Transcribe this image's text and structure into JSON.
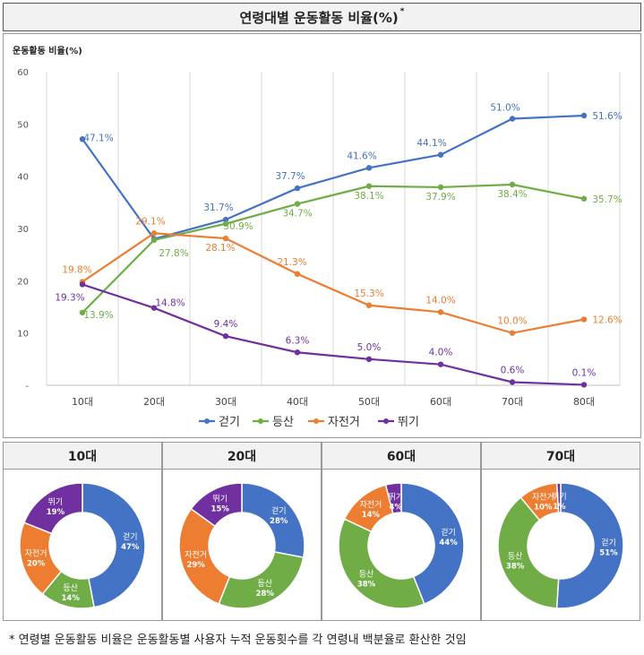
{
  "title": "연령대별 운동활동 비율(%)",
  "title_mark": "*",
  "footnote": "* 연령별 운동활동 비율은 운동활동별 사용자 누적 운동횟수를 각 연령내 백분율로 환산한 것임",
  "colors": {
    "walk": "#4472c4",
    "hike": "#70ad47",
    "bike": "#ed7d31",
    "run": "#7030a0",
    "grid": "#d9d9d9"
  },
  "chart_data": [
    {
      "type": "line",
      "ylabel": "운동활동 비율(%)",
      "ylim": [
        0,
        60
      ],
      "yticks": [
        0,
        10,
        20,
        30,
        40,
        50,
        60
      ],
      "y_tick_labels": [
        "-",
        "10",
        "20",
        "30",
        "40",
        "50",
        "60"
      ],
      "categories": [
        "10대",
        "20대",
        "30대",
        "40대",
        "50대",
        "60대",
        "70대",
        "80대"
      ],
      "grid": "vertical",
      "legend": "bottom",
      "series": [
        {
          "key": "walk",
          "name": "걷기",
          "values": [
            47.1,
            28.0,
            31.7,
            37.7,
            41.6,
            44.1,
            51.0,
            51.6
          ],
          "labels": [
            "47.1%",
            "",
            "31.7%",
            "37.7%",
            "41.6%",
            "44.1%",
            "51.0%",
            "51.6%"
          ]
        },
        {
          "key": "hike",
          "name": "등산",
          "values": [
            13.9,
            27.8,
            30.9,
            34.7,
            38.1,
            37.9,
            38.4,
            35.7
          ],
          "labels": [
            "13.9%",
            "27.8%",
            "30.9%",
            "34.7%",
            "38.1%",
            "37.9%",
            "38.4%",
            "35.7%"
          ]
        },
        {
          "key": "bike",
          "name": "자전거",
          "values": [
            19.8,
            29.1,
            28.1,
            21.3,
            15.3,
            14.0,
            10.0,
            12.6
          ],
          "labels": [
            "19.8%",
            "29.1%",
            "28.1%",
            "21.3%",
            "15.3%",
            "14.0%",
            "10.0%",
            "12.6%"
          ]
        },
        {
          "key": "run",
          "name": "뛰기",
          "values": [
            19.3,
            14.8,
            9.4,
            6.3,
            5.0,
            4.0,
            0.6,
            0.1
          ],
          "labels": [
            "19.3%",
            "14.8%",
            "9.4%",
            "6.3%",
            "5.0%",
            "4.0%",
            "0.6%",
            "0.1%"
          ]
        }
      ]
    },
    {
      "type": "pie",
      "title": "10대",
      "slices": [
        {
          "key": "walk",
          "name": "걷기",
          "value": 47,
          "label": "47%"
        },
        {
          "key": "hike",
          "name": "등산",
          "value": 14,
          "label": "14%"
        },
        {
          "key": "bike",
          "name": "자전거",
          "value": 20,
          "label": "20%"
        },
        {
          "key": "run",
          "name": "뛰기",
          "value": 19,
          "label": "19%"
        }
      ]
    },
    {
      "type": "pie",
      "title": "20대",
      "slices": [
        {
          "key": "walk",
          "name": "걷기",
          "value": 28,
          "label": "28%"
        },
        {
          "key": "hike",
          "name": "등산",
          "value": 28,
          "label": "28%"
        },
        {
          "key": "bike",
          "name": "자전거",
          "value": 29,
          "label": "29%"
        },
        {
          "key": "run",
          "name": "뛰기",
          "value": 15,
          "label": "15%"
        }
      ]
    },
    {
      "type": "pie",
      "title": "60대",
      "slices": [
        {
          "key": "walk",
          "name": "걷기",
          "value": 44,
          "label": "44%"
        },
        {
          "key": "hike",
          "name": "등산",
          "value": 38,
          "label": "38%"
        },
        {
          "key": "bike",
          "name": "자전거",
          "value": 14,
          "label": "14%"
        },
        {
          "key": "run",
          "name": "뛰기",
          "value": 4,
          "label": "4%"
        }
      ]
    },
    {
      "type": "pie",
      "title": "70대",
      "slices": [
        {
          "key": "walk",
          "name": "걷기",
          "value": 51,
          "label": "51%"
        },
        {
          "key": "hike",
          "name": "등산",
          "value": 38,
          "label": "38%"
        },
        {
          "key": "bike",
          "name": "자전거",
          "value": 10,
          "label": "10%"
        },
        {
          "key": "run",
          "name": "뛰기",
          "value": 1,
          "label": "1%"
        }
      ]
    }
  ]
}
